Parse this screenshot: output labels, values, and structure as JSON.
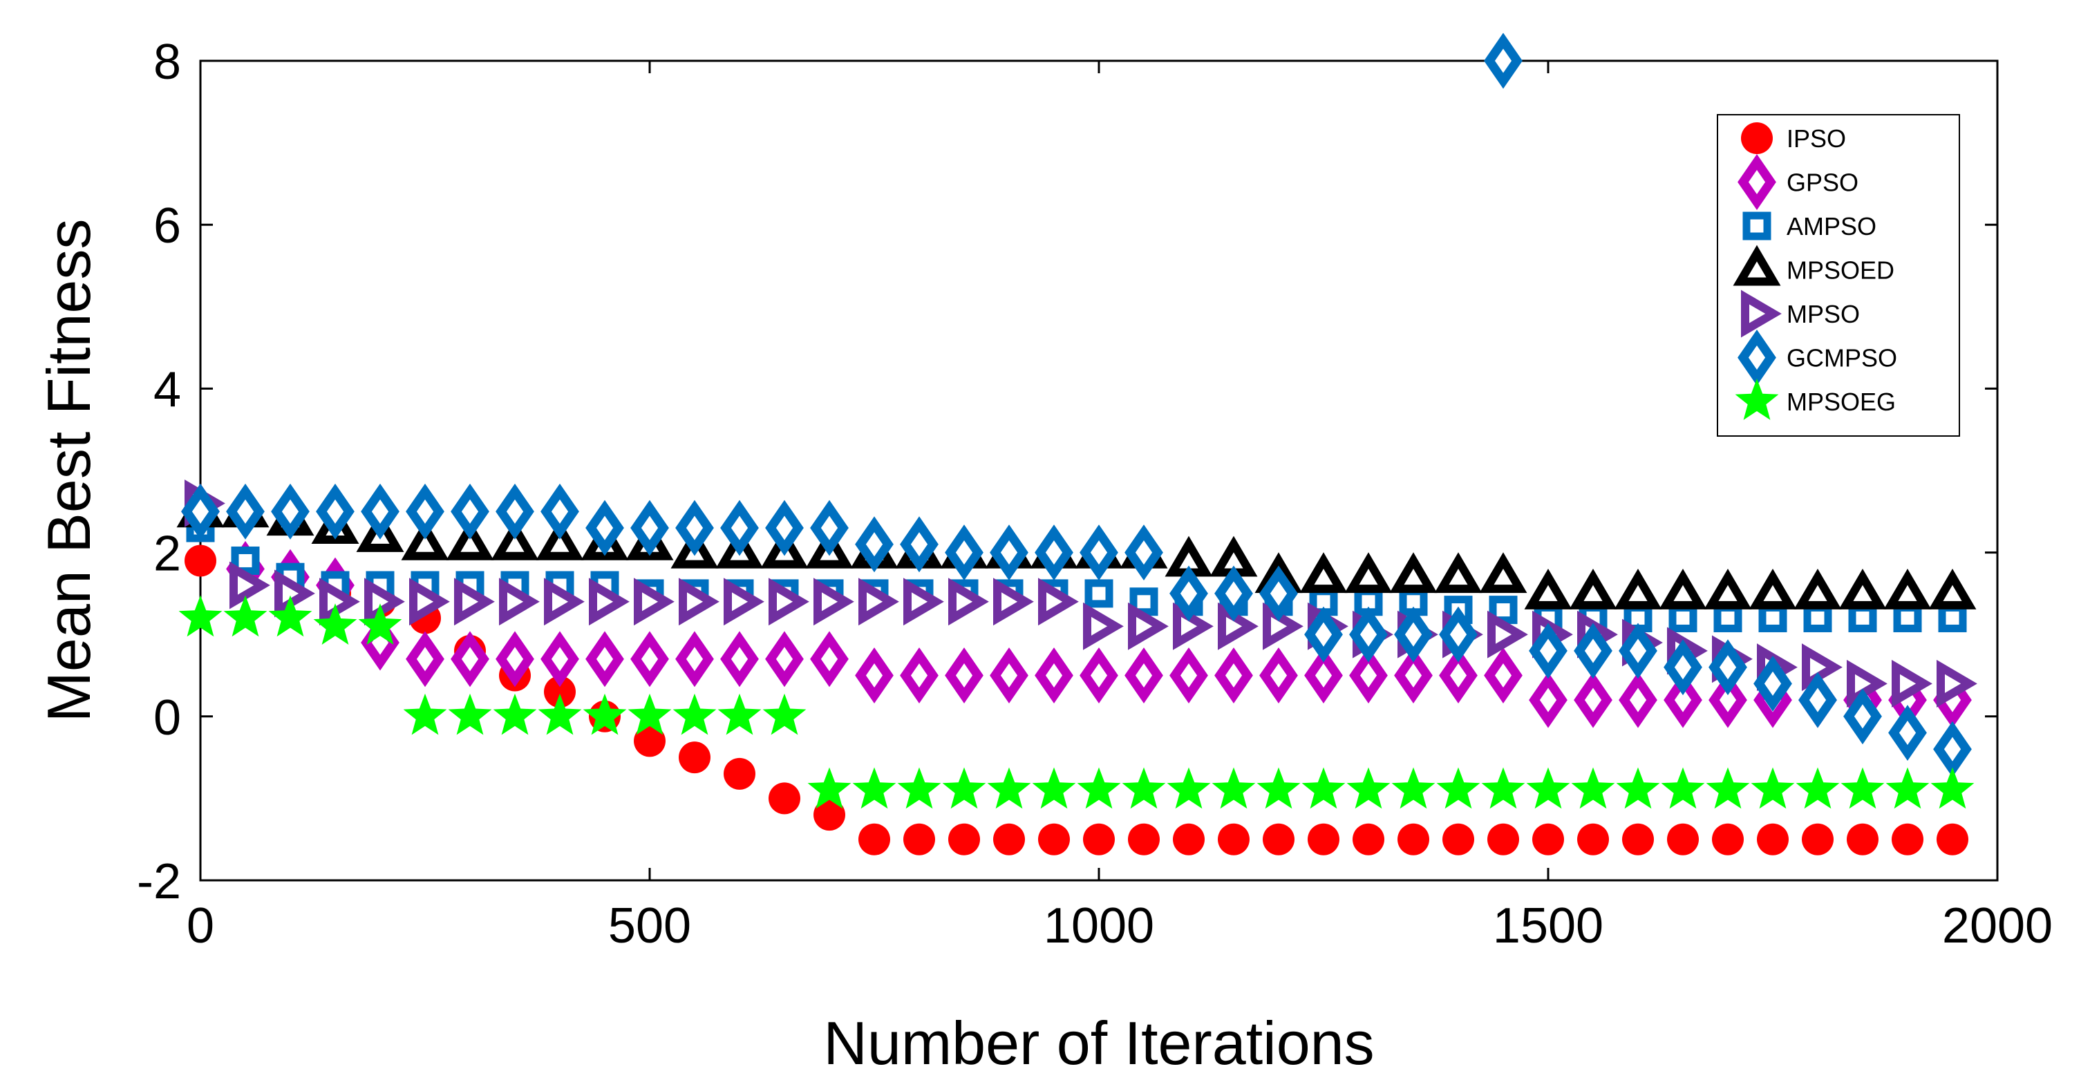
{
  "chart_data": {
    "type": "scatter",
    "title": "",
    "xlabel": "Number of Iterations",
    "ylabel": "Mean Best Fitness",
    "xlim": [
      0,
      2000
    ],
    "ylim": [
      -2,
      8
    ],
    "xticks": [
      0,
      500,
      1000,
      1500,
      2000
    ],
    "yticks": [
      -2,
      0,
      2,
      4,
      6,
      8
    ],
    "xtick_labels": [
      "0",
      "500",
      "1000",
      "1500",
      "2000"
    ],
    "ytick_labels": [
      "-2",
      "0",
      "2",
      "4",
      "6",
      "8"
    ],
    "grid": false,
    "legend_position": "top-right",
    "x": [
      0,
      50,
      100,
      150,
      200,
      250,
      300,
      350,
      400,
      450,
      500,
      550,
      600,
      650,
      700,
      750,
      800,
      850,
      900,
      950,
      1000,
      1050,
      1100,
      1150,
      1200,
      1250,
      1300,
      1350,
      1400,
      1450,
      1500,
      1550,
      1600,
      1650,
      1700,
      1750,
      1800,
      1850,
      1900,
      1950
    ],
    "series": [
      {
        "name": "IPSO",
        "marker": "circle",
        "color": "#ff0000",
        "values": [
          1.9,
          1.8,
          1.7,
          1.5,
          1.4,
          1.2,
          0.8,
          0.5,
          0.3,
          0.0,
          -0.3,
          -0.5,
          -0.7,
          -1.0,
          -1.2,
          -1.5,
          -1.5,
          -1.5,
          -1.5,
          -1.5,
          -1.5,
          -1.5,
          -1.5,
          -1.5,
          -1.5,
          -1.5,
          -1.5,
          -1.5,
          -1.5,
          -1.5,
          -1.5,
          -1.5,
          -1.5,
          -1.5,
          -1.5,
          -1.5,
          -1.5,
          -1.5,
          -1.5,
          -1.5
        ]
      },
      {
        "name": "GPSO",
        "marker": "diamond",
        "color": "#bf00bf",
        "values": [
          2.5,
          1.8,
          1.7,
          1.6,
          0.9,
          0.7,
          0.7,
          0.7,
          0.7,
          0.7,
          0.7,
          0.7,
          0.7,
          0.7,
          0.7,
          0.5,
          0.5,
          0.5,
          0.5,
          0.5,
          0.5,
          0.5,
          0.5,
          0.5,
          0.5,
          0.5,
          0.5,
          0.5,
          0.5,
          0.5,
          0.2,
          0.2,
          0.2,
          0.2,
          0.2,
          0.2,
          0.2,
          0.2,
          0.2,
          0.2
        ]
      },
      {
        "name": "AMPSO",
        "marker": "square",
        "color": "#0070c0",
        "values": [
          2.3,
          1.9,
          1.7,
          1.6,
          1.6,
          1.6,
          1.6,
          1.6,
          1.6,
          1.6,
          1.5,
          1.5,
          1.5,
          1.5,
          1.5,
          1.5,
          1.5,
          1.5,
          1.5,
          1.5,
          1.5,
          1.4,
          1.4,
          1.4,
          1.4,
          1.4,
          1.4,
          1.4,
          1.3,
          1.3,
          1.2,
          1.2,
          1.2,
          1.2,
          1.2,
          1.2,
          1.2,
          1.2,
          1.2,
          1.2
        ]
      },
      {
        "name": "MPSOED",
        "marker": "triangle",
        "color": "#000000",
        "values": [
          2.5,
          2.5,
          2.4,
          2.3,
          2.2,
          2.1,
          2.1,
          2.1,
          2.1,
          2.1,
          2.1,
          2.0,
          2.0,
          2.0,
          2.0,
          2.0,
          2.0,
          2.0,
          2.0,
          2.0,
          2.0,
          2.0,
          1.9,
          1.9,
          1.7,
          1.7,
          1.7,
          1.7,
          1.7,
          1.7,
          1.5,
          1.5,
          1.5,
          1.5,
          1.5,
          1.5,
          1.5,
          1.5,
          1.5,
          1.5
        ]
      },
      {
        "name": "MPSO",
        "marker": "triangle-right",
        "color": "#7030a0",
        "values": [
          2.6,
          1.6,
          1.5,
          1.4,
          1.4,
          1.4,
          1.4,
          1.4,
          1.4,
          1.4,
          1.4,
          1.4,
          1.4,
          1.4,
          1.4,
          1.4,
          1.4,
          1.4,
          1.4,
          1.4,
          1.1,
          1.1,
          1.1,
          1.1,
          1.1,
          1.1,
          1.0,
          1.0,
          1.0,
          1.0,
          1.0,
          1.0,
          0.9,
          0.8,
          0.7,
          0.6,
          0.6,
          0.4,
          0.4,
          0.4
        ]
      },
      {
        "name": "GCMPSO",
        "marker": "diamond",
        "color": "#0070c0",
        "values": [
          2.5,
          2.5,
          2.5,
          2.5,
          2.5,
          2.5,
          2.5,
          2.5,
          2.5,
          2.3,
          2.3,
          2.3,
          2.3,
          2.3,
          2.3,
          2.1,
          2.1,
          2.0,
          2.0,
          2.0,
          2.0,
          2.0,
          1.5,
          1.5,
          1.5,
          1.0,
          1.0,
          1.0,
          1.0,
          8.0,
          0.8,
          0.8,
          0.8,
          0.6,
          0.6,
          0.4,
          0.2,
          0.0,
          -0.2,
          -0.4
        ]
      },
      {
        "name": "MPSOEG",
        "marker": "star",
        "color": "#00ff00",
        "values": [
          1.2,
          1.2,
          1.2,
          1.1,
          1.1,
          0.0,
          0.0,
          0.0,
          0.0,
          0.0,
          0.0,
          0.0,
          0.0,
          0.0,
          -0.9,
          -0.9,
          -0.9,
          -0.9,
          -0.9,
          -0.9,
          -0.9,
          -0.9,
          -0.9,
          -0.9,
          -0.9,
          -0.9,
          -0.9,
          -0.9,
          -0.9,
          -0.9,
          -0.9,
          -0.9,
          -0.9,
          -0.9,
          -0.9,
          -0.9,
          -0.9,
          -0.9,
          -0.9,
          -0.9
        ]
      }
    ]
  }
}
